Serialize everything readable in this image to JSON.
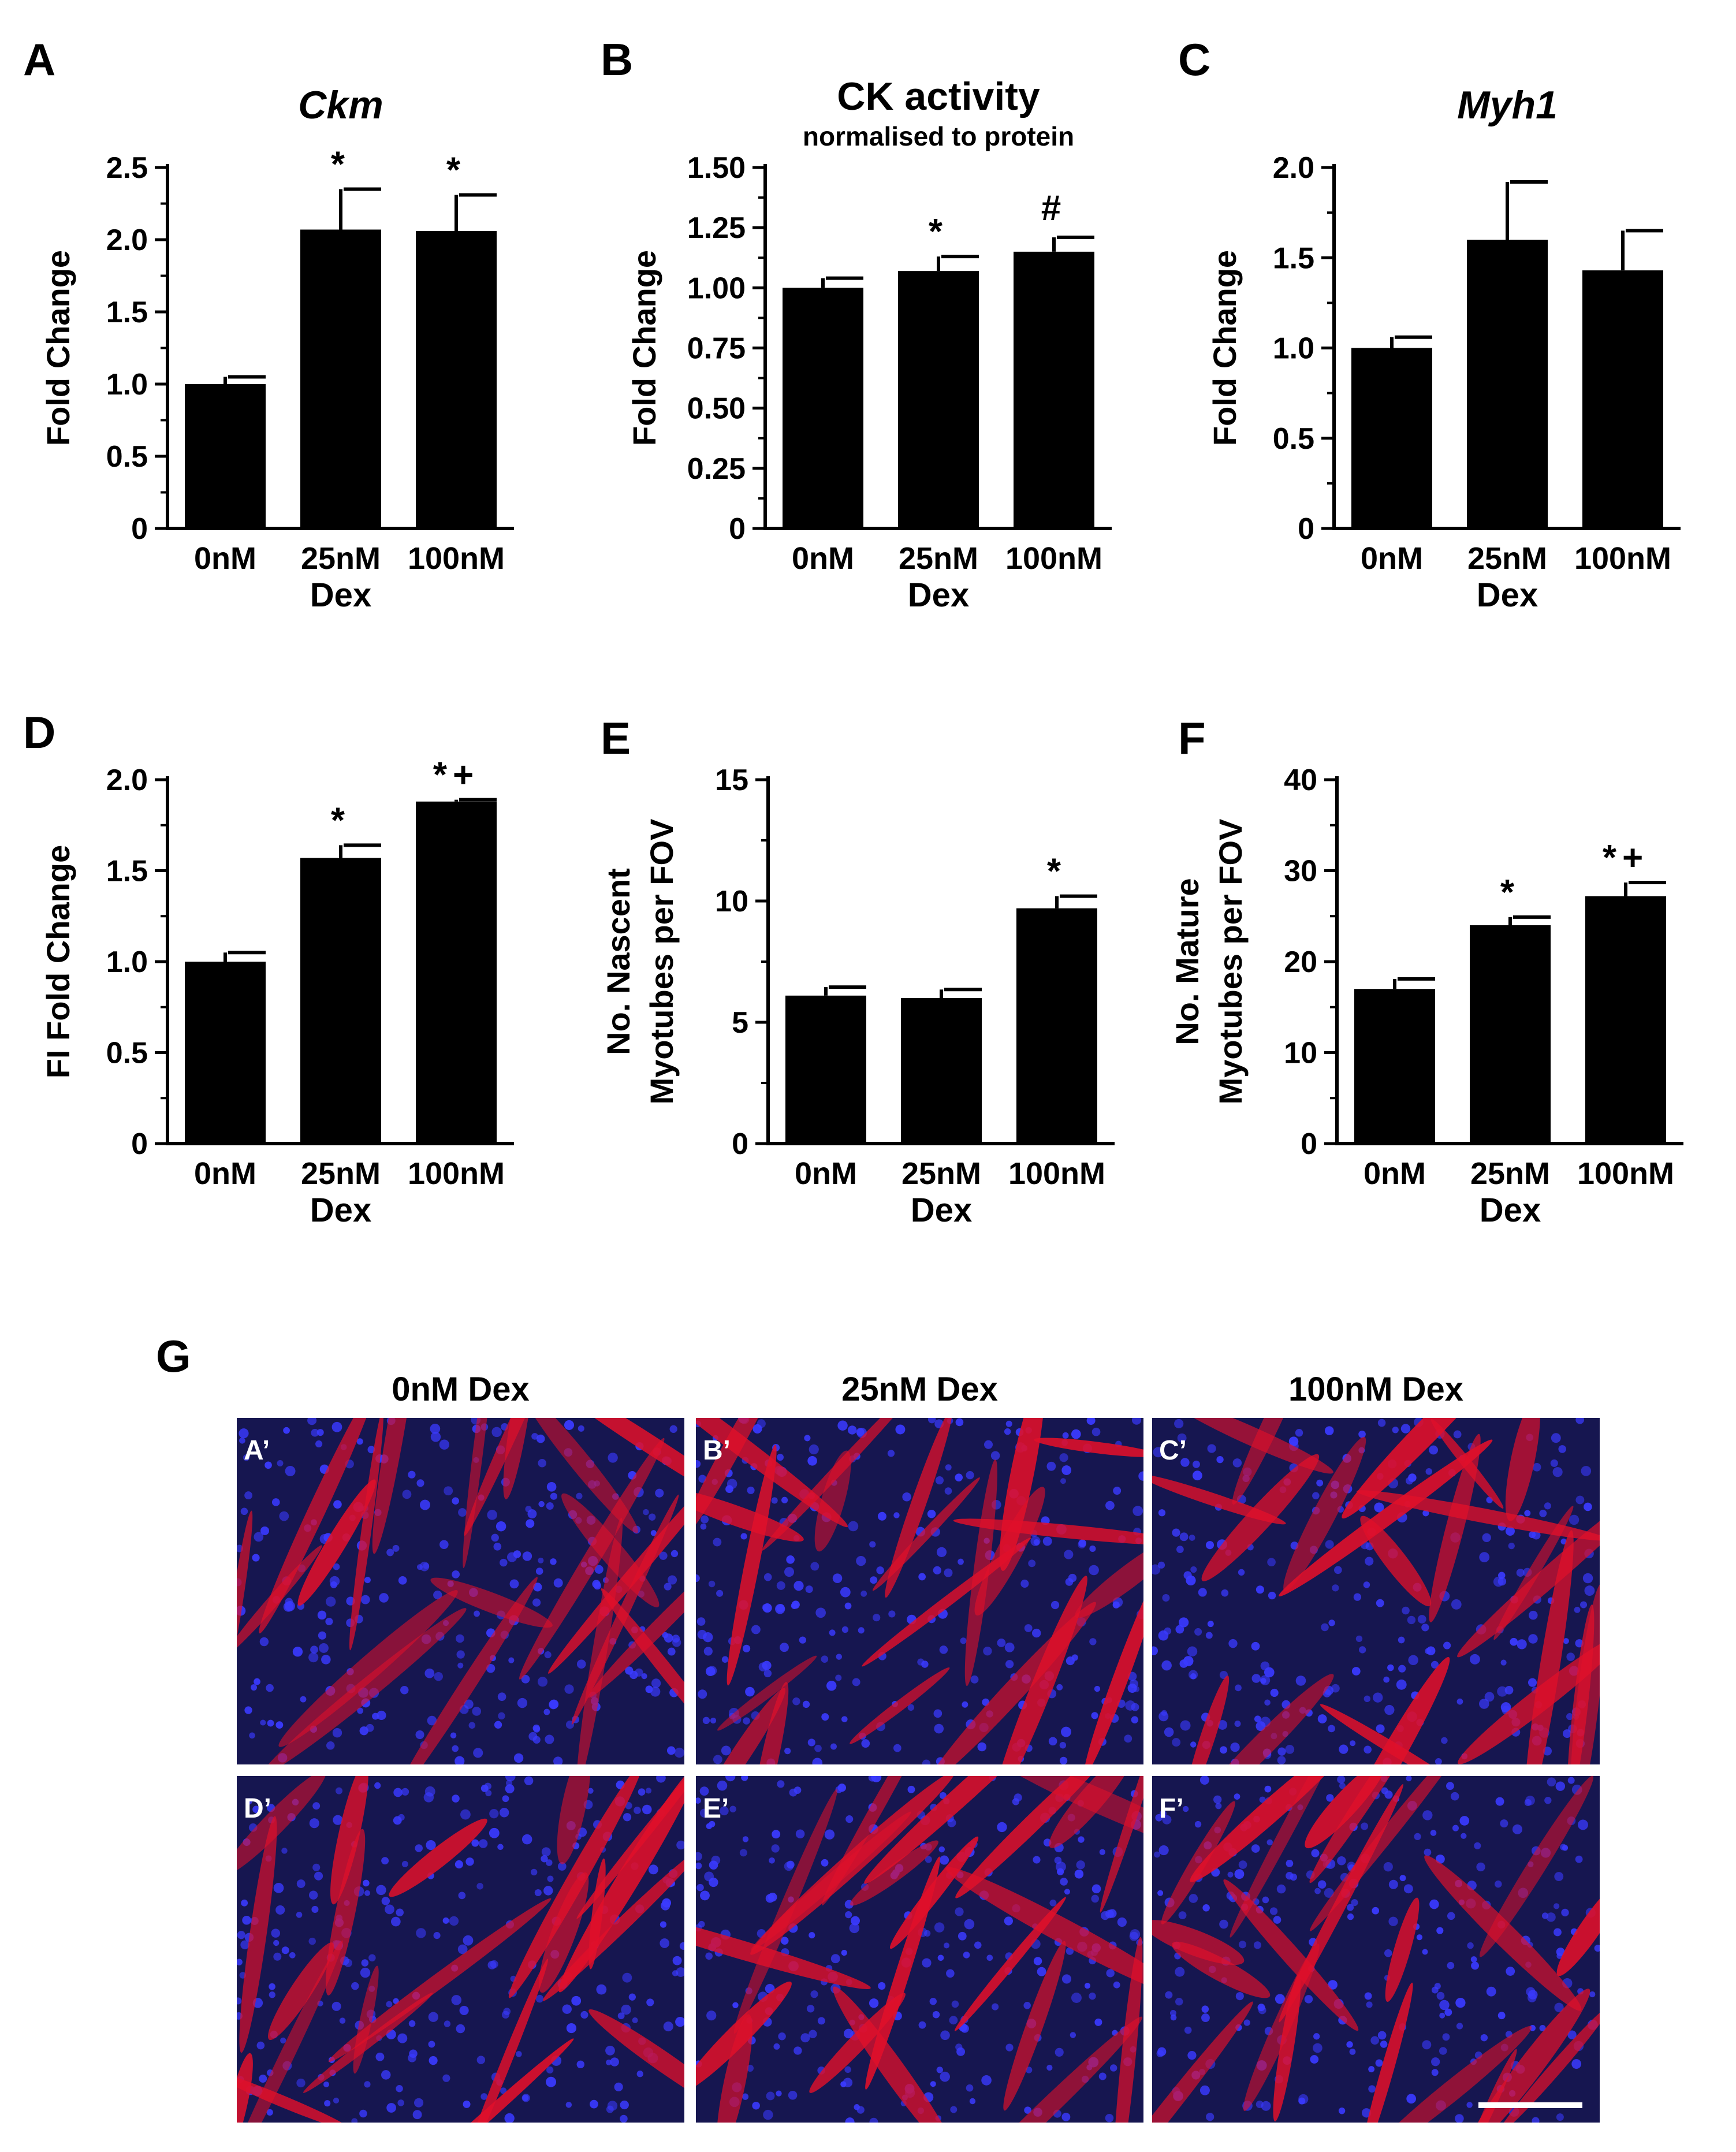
{
  "charts": [
    {
      "letter": "A",
      "type": "bar",
      "title": "Ckm",
      "subtitle": "",
      "title_italic": true,
      "categories": [
        "0nM",
        "25nM",
        "100nM"
      ],
      "values": [
        1.0,
        2.07,
        2.06
      ],
      "errors": [
        0.05,
        0.28,
        0.25
      ],
      "annotations": [
        "",
        "*",
        "*"
      ],
      "ylim": [
        0,
        2.5
      ],
      "yticks": [
        0,
        0.5,
        1.0,
        1.5,
        2.0,
        2.5
      ],
      "ytick_labels": [
        "0",
        "0.5",
        "1.0",
        "1.5",
        "2.0",
        "2.5"
      ],
      "ylabel": "Fold Change",
      "ylabel2": "",
      "xlabel": "Dex",
      "bar_color": "#000000"
    },
    {
      "letter": "B",
      "type": "bar",
      "title": "CK activity",
      "subtitle": "normalised to protein",
      "title_italic": false,
      "categories": [
        "0nM",
        "25nM",
        "100nM"
      ],
      "values": [
        1.0,
        1.07,
        1.15
      ],
      "errors": [
        0.04,
        0.06,
        0.06
      ],
      "annotations": [
        "",
        "*",
        "#"
      ],
      "ylim": [
        0,
        1.5
      ],
      "yticks": [
        0,
        0.25,
        0.5,
        0.75,
        1.0,
        1.25,
        1.5
      ],
      "ytick_labels": [
        "0",
        "0.25",
        "0.50",
        "0.75",
        "1.00",
        "1.25",
        "1.50"
      ],
      "ylabel": "Fold Change",
      "ylabel2": "",
      "xlabel": "Dex",
      "bar_color": "#000000"
    },
    {
      "letter": "C",
      "type": "bar",
      "title": "Myh1",
      "subtitle": "",
      "title_italic": true,
      "categories": [
        "0nM",
        "25nM",
        "100nM"
      ],
      "values": [
        1.0,
        1.6,
        1.43
      ],
      "errors": [
        0.06,
        0.32,
        0.22
      ],
      "annotations": [
        "",
        "",
        ""
      ],
      "ylim": [
        0,
        2.0
      ],
      "yticks": [
        0,
        0.5,
        1.0,
        1.5,
        2.0
      ],
      "ytick_labels": [
        "0",
        "0.5",
        "1.0",
        "1.5",
        "2.0"
      ],
      "ylabel": "Fold Change",
      "ylabel2": "",
      "xlabel": "Dex",
      "bar_color": "#000000"
    },
    {
      "letter": "D",
      "type": "bar",
      "title": "",
      "subtitle": "",
      "title_italic": false,
      "categories": [
        "0nM",
        "25nM",
        "100nM"
      ],
      "values": [
        1.0,
        1.57,
        1.88
      ],
      "errors": [
        0.05,
        0.07,
        0.01
      ],
      "annotations": [
        "",
        "*",
        "*+"
      ],
      "ylim": [
        0,
        2.0
      ],
      "yticks": [
        0,
        0.5,
        1.0,
        1.5,
        2.0
      ],
      "ytick_labels": [
        "0",
        "0.5",
        "1.0",
        "1.5",
        "2.0"
      ],
      "ylabel": "FI Fold Change",
      "ylabel2": "",
      "xlabel": "Dex",
      "bar_color": "#000000"
    },
    {
      "letter": "E",
      "type": "bar",
      "title": "",
      "subtitle": "",
      "title_italic": false,
      "categories": [
        "0nM",
        "25nM",
        "100nM"
      ],
      "values": [
        6.1,
        6.0,
        9.7
      ],
      "errors": [
        0.35,
        0.35,
        0.5
      ],
      "annotations": [
        "",
        "",
        "*"
      ],
      "ylim": [
        0,
        15
      ],
      "yticks": [
        0,
        5,
        10,
        15
      ],
      "ytick_labels": [
        "0",
        "5",
        "10",
        "15"
      ],
      "ylabel": "No. Nascent",
      "ylabel2": "Myotubes per FOV",
      "xlabel": "Dex",
      "bar_color": "#000000"
    },
    {
      "letter": "F",
      "type": "bar",
      "title": "",
      "subtitle": "",
      "title_italic": false,
      "categories": [
        "0nM",
        "25nM",
        "100nM"
      ],
      "values": [
        17.0,
        24.0,
        27.2
      ],
      "errors": [
        1.1,
        0.9,
        1.5
      ],
      "annotations": [
        "",
        "*",
        "*+"
      ],
      "ylim": [
        0,
        40
      ],
      "yticks": [
        0,
        10,
        20,
        30,
        40
      ],
      "ytick_labels": [
        "0",
        "10",
        "20",
        "30",
        "40"
      ],
      "ylabel": "No. Mature",
      "ylabel2": "Myotubes per FOV",
      "xlabel": "Dex",
      "bar_color": "#000000"
    }
  ],
  "micrographs": {
    "letter": "G",
    "column_titles": [
      "0nM Dex",
      "25nM Dex",
      "100nM Dex"
    ],
    "panels": [
      {
        "label": "A’"
      },
      {
        "label": "B’"
      },
      {
        "label": "C’"
      },
      {
        "label": "D’"
      },
      {
        "label": "E’"
      },
      {
        "label": "F’"
      }
    ],
    "background_color": "#161650",
    "nuclei_color": "#3a3aff",
    "myotube_color": "#e0102a"
  }
}
